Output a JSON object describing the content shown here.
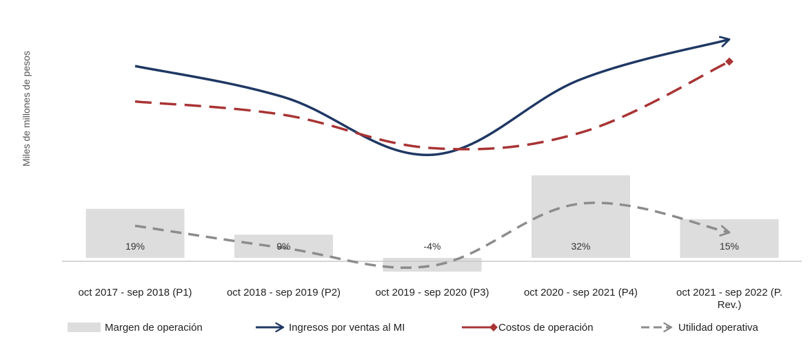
{
  "chart_data": {
    "type": "bar+line",
    "title": "",
    "ylabel": "Miles de millones de pesos",
    "xlabel": "",
    "categories": [
      "oct 2017 - sep 2018 (P1)",
      "oct 2018 - sep 2019 (P2)",
      "oct 2019 - sep 2020 (P3)",
      "oct 2020 - sep 2021 (P4)",
      "oct 2021 - sep 2022 (P. Rev.)"
    ],
    "margin_labels": [
      "19%",
      "9%",
      "-4%",
      "32%",
      "15%"
    ],
    "bar_series": {
      "name": "Margen de operación",
      "values": [
        19,
        9,
        -4,
        32,
        15
      ],
      "unit": "%",
      "color": "#dddddd"
    },
    "series": [
      {
        "name": "Ingresos por ventas al MI",
        "values": [
          88,
          74,
          48,
          82,
          100
        ],
        "color": "#1f3864",
        "style": "solid-arrow"
      },
      {
        "name": "Costos de operación",
        "values": [
          72,
          66,
          51,
          58,
          90
        ],
        "color": "#a93434",
        "style": "dashed-diamond"
      },
      {
        "name": "Utilidad operativa",
        "values": [
          16,
          6,
          -2,
          26,
          13
        ],
        "color": "#8c8c8c",
        "style": "dashed-arrow"
      }
    ],
    "ylim": [
      -10,
      110
    ],
    "gridlines": false,
    "legend_position": "bottom"
  },
  "colors": {
    "bar": "#dddddd",
    "baseline": "#c8c8c8",
    "ingresos": "#1f3864",
    "costos": "#a93434",
    "utilidad": "#8c8c8c"
  }
}
